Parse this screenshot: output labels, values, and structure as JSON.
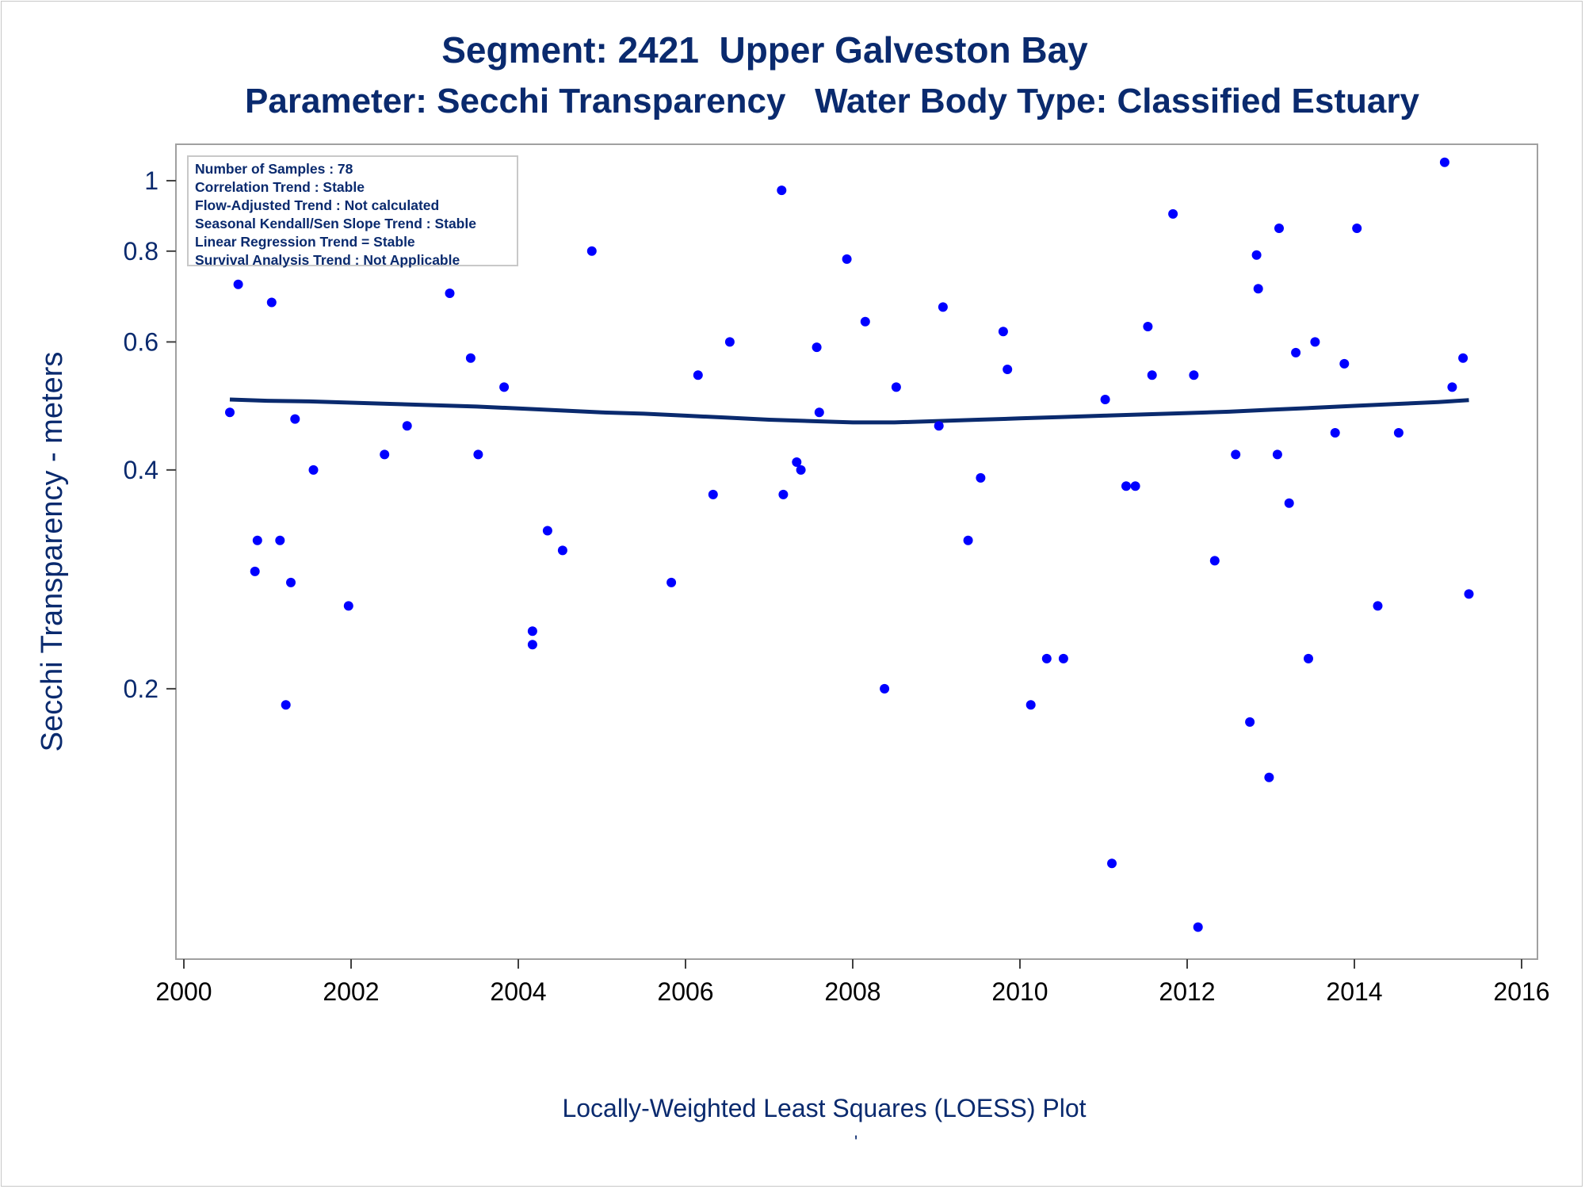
{
  "title_line1": "Segment: 2421  Upper Galveston Bay",
  "title_line2": "Parameter: Secchi Transparency   Water Body Type: Classified Estuary",
  "stats": [
    "Number of Samples : 78",
    "Correlation Trend : Stable",
    "Flow-Adjusted Trend : Not calculated",
    "Seasonal Kendall/Sen Slope Trend : Stable",
    "Linear Regression Trend = Stable",
    "Survival Analysis Trend : Not Applicable"
  ],
  "footnote": "'",
  "colors": {
    "points": "#0000ff",
    "line": "#0a2a6e",
    "text": "#0a2a6e",
    "frame": "#a0a0a0"
  },
  "chart_data": {
    "type": "scatter",
    "xlabel": "Locally-Weighted Least Squares (LOESS) Plot",
    "ylabel": "Secchi Transparency - meters",
    "xlim": [
      2000,
      2016
    ],
    "ylim": [
      0.086,
      1.1
    ],
    "y_scale": "log",
    "grid": false,
    "x_ticks": [
      2000,
      2002,
      2004,
      2006,
      2008,
      2010,
      2012,
      2014,
      2016
    ],
    "y_ticks": [
      0.2,
      0.4,
      0.6,
      0.8,
      1
    ],
    "y_tick_labels": [
      "0.2",
      "0.4",
      "0.6",
      "0.8",
      "1"
    ],
    "series": [
      {
        "type": "scatter",
        "x": [
          2000.55,
          2000.65,
          2000.85,
          2000.88,
          2000.95,
          2001.05,
          2001.15,
          2001.22,
          2001.28,
          2001.33,
          2001.55,
          2001.6,
          2001.97,
          2002.15,
          2002.4,
          2002.67,
          2003.18,
          2003.43,
          2003.52,
          2003.83,
          2004.17,
          2004.17,
          2004.35,
          2004.53,
          2004.88,
          2005.83,
          2006.15,
          2006.33,
          2006.53,
          2007.15,
          2007.17,
          2007.33,
          2007.38,
          2007.57,
          2007.6,
          2007.93,
          2008.15,
          2008.38,
          2008.52,
          2009.03,
          2009.08,
          2009.38,
          2009.53,
          2009.8,
          2009.85,
          2010.13,
          2010.32,
          2010.52,
          2011.02,
          2011.1,
          2011.27,
          2011.38,
          2011.53,
          2011.58,
          2011.83,
          2012.08,
          2012.13,
          2012.33,
          2012.58,
          2012.75,
          2012.83,
          2012.85,
          2012.98,
          2013.08,
          2013.1,
          2013.22,
          2013.3,
          2013.45,
          2013.53,
          2013.77,
          2013.88,
          2014.03,
          2014.28,
          2014.53,
          2015.08,
          2015.17,
          2015.3,
          2015.37
        ],
        "y": [
          0.48,
          0.72,
          0.29,
          0.32,
          0.96,
          0.68,
          0.32,
          0.19,
          0.28,
          0.47,
          0.4,
          0.96,
          0.26,
          0.85,
          0.42,
          0.46,
          0.7,
          0.57,
          0.42,
          0.52,
          0.24,
          0.23,
          0.33,
          0.31,
          0.8,
          0.28,
          0.54,
          0.37,
          0.6,
          0.97,
          0.37,
          0.41,
          0.4,
          0.59,
          0.48,
          0.78,
          0.64,
          0.2,
          0.52,
          0.46,
          0.67,
          0.32,
          0.39,
          0.62,
          0.55,
          0.19,
          0.22,
          0.22,
          0.5,
          0.115,
          0.38,
          0.38,
          0.63,
          0.54,
          0.9,
          0.54,
          0.094,
          0.3,
          0.42,
          0.18,
          0.79,
          0.71,
          0.151,
          0.42,
          0.86,
          0.36,
          0.58,
          0.22,
          0.6,
          0.45,
          0.56,
          0.86,
          0.26,
          0.45,
          1.06,
          0.52,
          0.57,
          0.27
        ]
      },
      {
        "type": "line",
        "name": "LOESS",
        "x": [
          2000.55,
          2001.0,
          2001.5,
          2002.0,
          2002.5,
          2003.0,
          2003.5,
          2004.0,
          2004.5,
          2005.0,
          2005.5,
          2006.0,
          2006.5,
          2007.0,
          2007.5,
          2008.0,
          2008.5,
          2009.0,
          2009.5,
          2010.0,
          2010.5,
          2011.0,
          2011.5,
          2012.0,
          2012.5,
          2013.0,
          2013.5,
          2014.0,
          2014.5,
          2015.0,
          2015.37
        ],
        "y": [
          0.5,
          0.498,
          0.497,
          0.495,
          0.493,
          0.491,
          0.489,
          0.486,
          0.483,
          0.48,
          0.478,
          0.475,
          0.472,
          0.469,
          0.467,
          0.465,
          0.465,
          0.467,
          0.469,
          0.471,
          0.473,
          0.475,
          0.477,
          0.479,
          0.481,
          0.484,
          0.487,
          0.49,
          0.493,
          0.496,
          0.499
        ]
      }
    ]
  }
}
